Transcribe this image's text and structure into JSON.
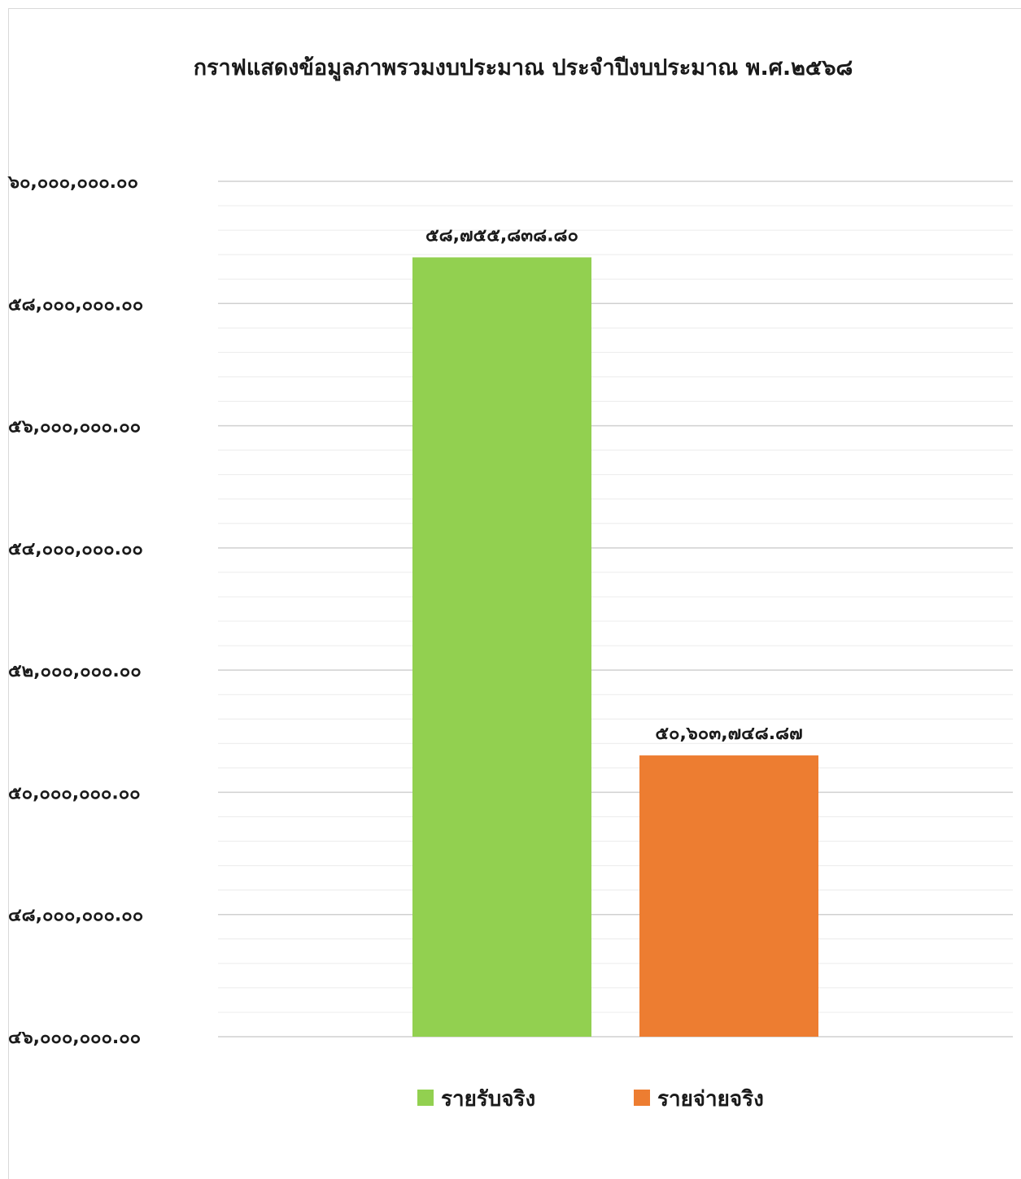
{
  "chart_data": {
    "type": "bar",
    "title": "กราฟแสดงข้อมูลภาพรวมงบประมาณ ประจำปีงบประมาณ พ.ศ.๒๕๖๘",
    "xlabel": "",
    "ylabel": "",
    "ylim": [
      46000000,
      60000000
    ],
    "yticks": [
      46000000,
      48000000,
      50000000,
      52000000,
      54000000,
      56000000,
      58000000,
      60000000
    ],
    "ytick_labels": [
      "๔๖,๐๐๐,๐๐๐.๐๐",
      "๔๘,๐๐๐,๐๐๐.๐๐",
      "๕๐,๐๐๐,๐๐๐.๐๐",
      "๕๒,๐๐๐,๐๐๐.๐๐",
      "๕๔,๐๐๐,๐๐๐.๐๐",
      "๕๖,๐๐๐,๐๐๐.๐๐",
      "๕๘,๐๐๐,๐๐๐.๐๐",
      "๖๐,๐๐๐,๐๐๐.๐๐"
    ],
    "minor_gridlines_per_major": 5,
    "grid": true,
    "legend_position": "bottom",
    "series": [
      {
        "name": "รายรับจริง",
        "value": 58755838.8,
        "label": "๕๘,๗๕๕,๘๓๘.๘๐",
        "color": "#92d050"
      },
      {
        "name": "รายจ่ายจริง",
        "value": 50603748.87,
        "label": "๕๐,๖๐๓,๗๔๘.๘๗",
        "color": "#ed7d31"
      }
    ]
  }
}
